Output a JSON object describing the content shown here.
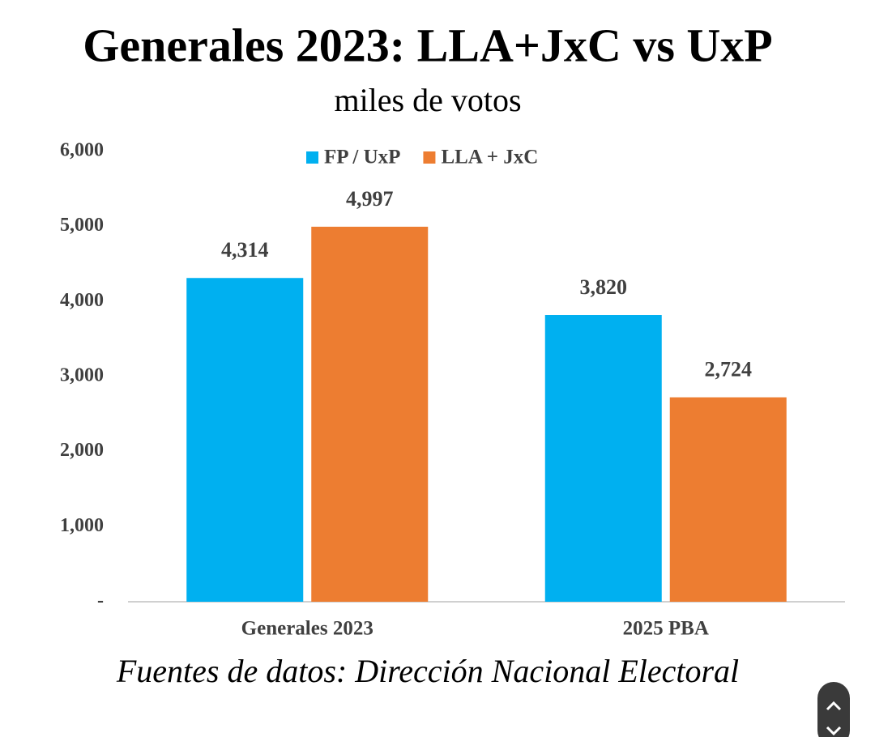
{
  "chart_data": {
    "type": "bar",
    "title": "Generales 2023: LLA+JxC vs UxP",
    "subtitle": "miles de votos",
    "source": "Fuentes de datos: Dirección Nacional Electoral",
    "categories": [
      "Generales 2023",
      "2025 PBA"
    ],
    "series": [
      {
        "name": "FP / UxP",
        "color": "#00b0f0",
        "values": [
          4314,
          3820
        ],
        "value_labels": [
          "4,314",
          "3,820"
        ]
      },
      {
        "name": "LLA + JxC",
        "color": "#ed7d31",
        "values": [
          4997,
          2724
        ],
        "value_labels": [
          "4,997",
          "2,724"
        ]
      }
    ],
    "ylim": [
      0,
      6000
    ],
    "yticks": [
      {
        "value": 0,
        "label": "-"
      },
      {
        "value": 1000,
        "label": "1,000"
      },
      {
        "value": 2000,
        "label": "2,000"
      },
      {
        "value": 3000,
        "label": "3,000"
      },
      {
        "value": 4000,
        "label": "4,000"
      },
      {
        "value": 5000,
        "label": "5,000"
      },
      {
        "value": 6000,
        "label": "6,000"
      }
    ],
    "grid": false,
    "legend": "top"
  }
}
